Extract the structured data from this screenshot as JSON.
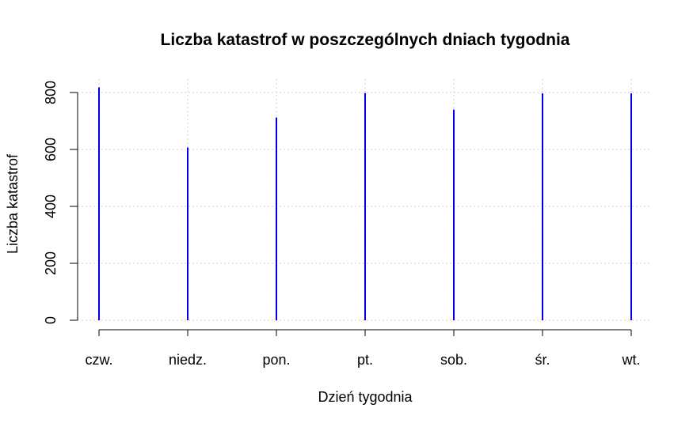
{
  "chart_data": {
    "type": "bar",
    "title": "Liczba katastrof w poszczególnych dniach tygodnia",
    "xlabel": "Dzień tygodnia",
    "ylabel": "Liczba katastrof",
    "categories": [
      "czw.",
      "niedz.",
      "pon.",
      "pt.",
      "sob.",
      "śr.",
      "wt."
    ],
    "values": [
      818,
      607,
      712,
      798,
      740,
      797,
      797
    ],
    "ylim": [
      0,
      800
    ],
    "yticks": [
      0,
      200,
      400,
      600,
      800
    ],
    "ytick_labels": [
      "0",
      "200",
      "400",
      "600",
      "800"
    ],
    "grid": true,
    "line_color": "#0000ff",
    "line_dash_color": "#000000"
  }
}
